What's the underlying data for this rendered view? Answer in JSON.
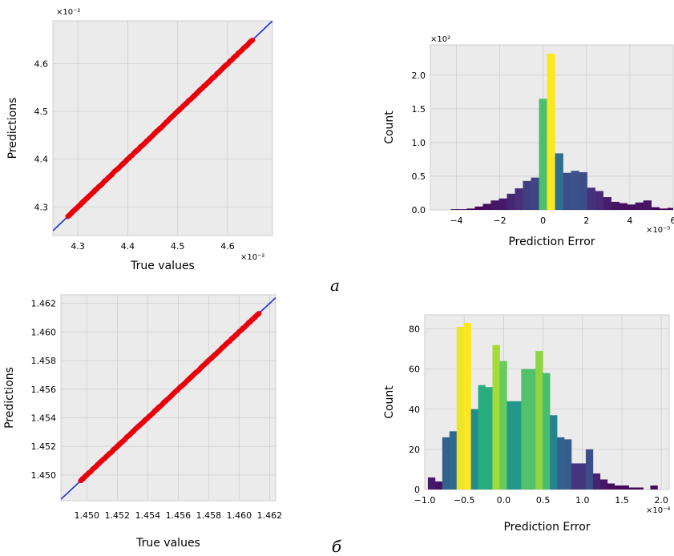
{
  "figure": {
    "panel_labels": [
      "a",
      "б"
    ]
  },
  "chart_data": [
    {
      "id": "a-scatter",
      "type": "scatter",
      "title": "",
      "xlabel": "True values",
      "ylabel": "Predictions",
      "x_exponent": "×10⁻²",
      "y_exponent": "×10⁻²",
      "xlim": [
        4.25,
        4.69
      ],
      "ylim": [
        4.24,
        4.69
      ],
      "xticks": [
        4.3,
        4.4,
        4.5,
        4.6
      ],
      "xtick_labels": [
        "4.3",
        "4.4",
        "4.5",
        "4.6"
      ],
      "yticks": [
        4.3,
        4.4,
        4.5,
        4.6
      ],
      "ytick_labels": [
        "4.3",
        "4.4",
        "4.5",
        "4.6"
      ],
      "grid": true,
      "reference_line": {
        "from": [
          4.25,
          4.25
        ],
        "to": [
          4.69,
          4.69
        ],
        "color": "#1f2be0"
      },
      "points": {
        "x_range": [
          4.28,
          4.65
        ],
        "count": 300,
        "color": "#e8000b"
      }
    },
    {
      "id": "a-hist",
      "type": "bar",
      "title": "",
      "xlabel": "Prediction Error",
      "ylabel": "Count",
      "x_exponent": "×10⁻⁵",
      "y_exponent": "×10²",
      "xlim": [
        -5.2,
        6.0
      ],
      "ylim": [
        0,
        2.45
      ],
      "xticks": [
        -4,
        -2,
        0,
        2,
        4,
        6
      ],
      "xtick_labels": [
        "−4",
        "−2",
        "0",
        "2",
        "4",
        "6"
      ],
      "yticks": [
        0,
        0.5,
        1.0,
        1.5,
        2.0
      ],
      "ytick_labels": [
        "0.0",
        "0.5",
        "1.0",
        "1.5",
        "2.0"
      ],
      "grid": true,
      "bin_start": -5.0,
      "bin_width": 0.37,
      "values": [
        0,
        0,
        0.01,
        0.01,
        0.02,
        0.05,
        0.09,
        0.14,
        0.17,
        0.24,
        0.32,
        0.43,
        0.48,
        1.65,
        2.32,
        0.84,
        0.55,
        0.58,
        0.56,
        0.33,
        0.28,
        0.19,
        0.12,
        0.1,
        0.08,
        0.11,
        0.14,
        0.04,
        0.02,
        0.03,
        0.01,
        0.01
      ],
      "colormap": "viridis"
    },
    {
      "id": "b-scatter",
      "type": "scatter",
      "title": "",
      "xlabel": "True values",
      "ylabel": "Predictions",
      "xlim": [
        1.4483,
        1.4624
      ],
      "ylim": [
        1.4482,
        1.4626
      ],
      "xticks": [
        1.45,
        1.452,
        1.454,
        1.456,
        1.458,
        1.46,
        1.462
      ],
      "xtick_labels": [
        "1.450",
        "1.452",
        "1.454",
        "1.456",
        "1.458",
        "1.460",
        "1.462"
      ],
      "yticks": [
        1.45,
        1.452,
        1.454,
        1.456,
        1.458,
        1.46,
        1.462
      ],
      "ytick_labels": [
        "1.450",
        "1.452",
        "1.454",
        "1.456",
        "1.458",
        "1.460",
        "1.462"
      ],
      "grid": true,
      "reference_line": {
        "from": [
          1.4483,
          1.4483
        ],
        "to": [
          1.4624,
          1.4624
        ],
        "color": "#1f2be0"
      },
      "points": {
        "x_range": [
          1.4496,
          1.4613
        ],
        "count": 300,
        "color": "#e8000b"
      }
    },
    {
      "id": "b-hist",
      "type": "bar",
      "title": "",
      "xlabel": "Prediction Error",
      "ylabel": "Count",
      "x_exponent": "×10⁻⁴",
      "xlim": [
        -1.0,
        2.1
      ],
      "ylim": [
        0,
        87
      ],
      "xticks": [
        -1.0,
        -0.5,
        0.0,
        0.5,
        1.0,
        1.5,
        2.0
      ],
      "xtick_labels": [
        "−1.0",
        "−0.5",
        "0.0",
        "0.5",
        "1.0",
        "1.5",
        "2.0"
      ],
      "yticks": [
        0,
        20,
        40,
        60,
        80
      ],
      "ytick_labels": [
        "0",
        "20",
        "40",
        "60",
        "80"
      ],
      "grid": true,
      "bin_start": -0.96,
      "bin_width": 0.091,
      "values": [
        6,
        4,
        26,
        29,
        81,
        83,
        40,
        52,
        51,
        72,
        64,
        44,
        44,
        60,
        60,
        69,
        58,
        37,
        26,
        25,
        13,
        13,
        20,
        8,
        5,
        3,
        2,
        2,
        1,
        1,
        0,
        2
      ],
      "colormap": "viridis"
    }
  ]
}
